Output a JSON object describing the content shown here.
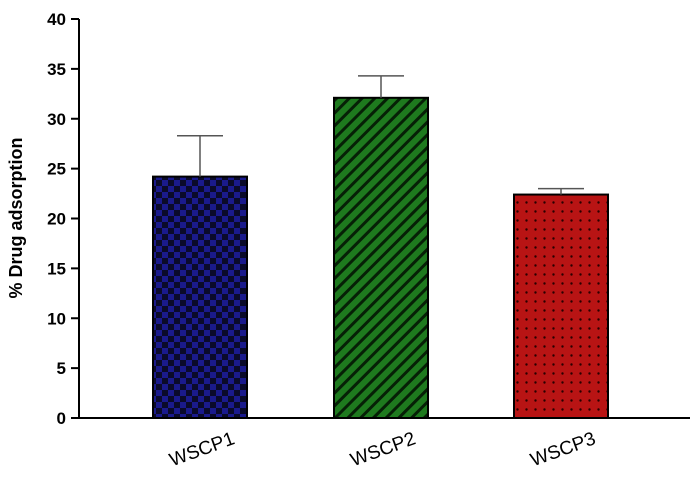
{
  "chart_data": {
    "type": "bar",
    "title": "",
    "xlabel": "",
    "ylabel": "% Drug adsorption",
    "categories": [
      "WSCP1",
      "WSCP2",
      "WSCP3"
    ],
    "values": [
      24.2,
      32.1,
      22.4
    ],
    "error_upper": [
      4.1,
      2.2,
      0.6
    ],
    "ylim": [
      0,
      40
    ],
    "yticks": [
      "0",
      "5",
      "10",
      "15",
      "20",
      "25",
      "30",
      "35",
      "40"
    ],
    "bar_colors": [
      "#1a1a8c",
      "#1e7a1e",
      "#b81414"
    ],
    "bar_patterns": [
      "checker",
      "diagonal-stripes",
      "dots"
    ],
    "grid": false,
    "legend": "none"
  }
}
